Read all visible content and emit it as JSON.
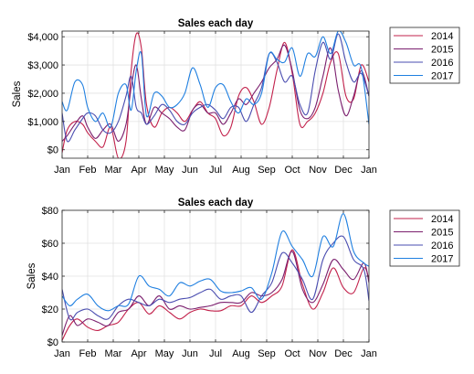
{
  "chart_data": [
    {
      "type": "line",
      "title": "Sales each day",
      "xlabel": "",
      "ylabel": "Sales",
      "categories": [
        "Jan",
        "Feb",
        "Mar",
        "Apr",
        "May",
        "Jun",
        "Jul",
        "Aug",
        "Sep",
        "Oct",
        "Nov",
        "Dec",
        "Jan"
      ],
      "ylim": [
        -300,
        4200
      ],
      "yticks": [
        0,
        1000,
        2000,
        3000,
        4000
      ],
      "ytick_labels": [
        "$0",
        "$1,000",
        "$2,000",
        "$3,000",
        "$4,000"
      ],
      "grid": true,
      "legend_position": "outside-top-right",
      "series": [
        {
          "name": "2014",
          "color": "#c2214b",
          "x": [
            0,
            0.2,
            0.5,
            0.8,
            1.0,
            1.3,
            1.6,
            1.9,
            2.2,
            2.5,
            2.7,
            2.9,
            3.1,
            3.3,
            3.6,
            3.9,
            4.2,
            4.5,
            4.8,
            5.1,
            5.4,
            5.7,
            6.0,
            6.3,
            6.6,
            6.9,
            7.2,
            7.5,
            7.8,
            8.1,
            8.4,
            8.7,
            9.0,
            9.3,
            9.6,
            9.9,
            10.2,
            10.5,
            10.8,
            11.1,
            11.4,
            11.7,
            12.0
          ],
          "values": [
            -100,
            700,
            1000,
            900,
            600,
            300,
            100,
            800,
            -300,
            300,
            2800,
            4100,
            3600,
            1600,
            800,
            1300,
            1500,
            1300,
            1000,
            1400,
            1700,
            1300,
            1100,
            500,
            800,
            1900,
            2200,
            1700,
            900,
            1500,
            2800,
            3800,
            2700,
            900,
            1000,
            1300,
            2000,
            3100,
            3400,
            1900,
            1800,
            3000,
            2400
          ]
        },
        {
          "name": "2015",
          "color": "#7b1f6e",
          "x": [
            0,
            0.2,
            0.5,
            0.8,
            1.0,
            1.3,
            1.6,
            1.9,
            2.2,
            2.5,
            2.7,
            2.9,
            3.1,
            3.3,
            3.6,
            3.9,
            4.2,
            4.5,
            4.8,
            5.1,
            5.4,
            5.7,
            6.0,
            6.3,
            6.6,
            6.9,
            7.2,
            7.5,
            7.8,
            8.1,
            8.4,
            8.7,
            9.0,
            9.3,
            9.6,
            9.9,
            10.2,
            10.5,
            10.8,
            11.1,
            11.4,
            11.7,
            12.0
          ],
          "values": [
            300,
            500,
            900,
            1200,
            800,
            400,
            700,
            900,
            300,
            900,
            2200,
            3000,
            1800,
            900,
            1500,
            1300,
            1100,
            800,
            700,
            1400,
            1600,
            1300,
            1300,
            900,
            1300,
            1800,
            1600,
            2000,
            2400,
            2900,
            3200,
            3700,
            2800,
            1400,
            1100,
            1500,
            2600,
            3600,
            2100,
            1200,
            1900,
            2800,
            1900
          ]
        },
        {
          "name": "2016",
          "color": "#4a4db0",
          "x": [
            0,
            0.2,
            0.5,
            0.8,
            1.0,
            1.3,
            1.6,
            1.9,
            2.2,
            2.5,
            2.7,
            2.9,
            3.1,
            3.3,
            3.6,
            3.9,
            4.2,
            4.5,
            4.8,
            5.1,
            5.4,
            5.7,
            6.0,
            6.3,
            6.6,
            6.9,
            7.2,
            7.5,
            7.8,
            8.1,
            8.4,
            8.7,
            9.0,
            9.3,
            9.6,
            9.9,
            10.2,
            10.5,
            10.8,
            11.1,
            11.4,
            11.7,
            12.0
          ],
          "values": [
            1300,
            300,
            700,
            1100,
            1300,
            1200,
            700,
            600,
            1000,
            1900,
            2600,
            1500,
            1300,
            900,
            1200,
            1600,
            1400,
            1000,
            900,
            1300,
            1500,
            1600,
            1400,
            1100,
            1500,
            1500,
            1000,
            1600,
            2200,
            3400,
            3100,
            2400,
            2600,
            1600,
            1300,
            2800,
            3800,
            3200,
            4100,
            3100,
            2400,
            2700,
            1900
          ]
        },
        {
          "name": "2017",
          "color": "#1f7fe0",
          "x": [
            0,
            0.2,
            0.5,
            0.8,
            1.0,
            1.3,
            1.6,
            1.9,
            2.2,
            2.5,
            2.7,
            2.9,
            3.1,
            3.3,
            3.6,
            3.9,
            4.2,
            4.5,
            4.8,
            5.1,
            5.4,
            5.7,
            6.0,
            6.3,
            6.6,
            6.9,
            7.2,
            7.5,
            7.8,
            8.1,
            8.4,
            8.7,
            9.0,
            9.3,
            9.6,
            9.9,
            10.2,
            10.5,
            10.8,
            11.1,
            11.4,
            11.7,
            12.0
          ],
          "values": [
            1700,
            1400,
            2400,
            2300,
            1500,
            1000,
            1300,
            800,
            2000,
            2300,
            1400,
            2800,
            3400,
            1200,
            2000,
            1900,
            1500,
            1600,
            2000,
            2900,
            2300,
            1500,
            2200,
            2300,
            1700,
            1300,
            1800,
            1600,
            2000,
            3400,
            3200,
            3100,
            3600,
            2600,
            3400,
            3300,
            4000,
            3400,
            4200,
            3800,
            3000,
            2900,
            900
          ]
        }
      ]
    },
    {
      "type": "line",
      "title": "Sales each day",
      "xlabel": "",
      "ylabel": "Sales",
      "categories": [
        "Jan",
        "Feb",
        "Mar",
        "Apr",
        "May",
        "Jun",
        "Jul",
        "Aug",
        "Sep",
        "Oct",
        "Nov",
        "Dec",
        "Jan"
      ],
      "ylim": [
        0,
        80
      ],
      "yticks": [
        0,
        20,
        40,
        60,
        80
      ],
      "ytick_labels": [
        "$0",
        "$20",
        "$40",
        "$60",
        "$80"
      ],
      "grid": true,
      "legend_position": "outside-top-right",
      "series": [
        {
          "name": "2014",
          "color": "#c2214b",
          "x": [
            0,
            0.3,
            0.6,
            1.0,
            1.4,
            1.8,
            2.2,
            2.6,
            3.0,
            3.4,
            3.8,
            4.2,
            4.6,
            5.0,
            5.4,
            5.8,
            6.2,
            6.6,
            7.0,
            7.4,
            7.8,
            8.2,
            8.6,
            9.0,
            9.4,
            9.8,
            10.2,
            10.6,
            11.0,
            11.4,
            11.8,
            12.0
          ],
          "values": [
            1,
            10,
            14,
            9,
            7,
            10,
            12,
            20,
            24,
            17,
            22,
            18,
            14,
            18,
            20,
            19,
            19,
            22,
            22,
            28,
            24,
            28,
            34,
            56,
            35,
            20,
            30,
            45,
            33,
            30,
            45,
            38
          ]
        },
        {
          "name": "2015",
          "color": "#7b1f6e",
          "x": [
            0,
            0.3,
            0.6,
            1.0,
            1.4,
            1.8,
            2.2,
            2.6,
            3.0,
            3.4,
            3.8,
            4.2,
            4.6,
            5.0,
            5.4,
            5.8,
            6.2,
            6.6,
            7.0,
            7.4,
            7.8,
            8.2,
            8.6,
            9.0,
            9.4,
            9.8,
            10.2,
            10.6,
            11.0,
            11.4,
            11.8,
            12.0
          ],
          "values": [
            4,
            16,
            10,
            14,
            12,
            10,
            18,
            20,
            28,
            22,
            28,
            20,
            22,
            20,
            21,
            22,
            24,
            24,
            24,
            30,
            28,
            30,
            38,
            55,
            32,
            24,
            35,
            50,
            44,
            38,
            48,
            36
          ]
        },
        {
          "name": "2016",
          "color": "#4a4db0",
          "x": [
            0,
            0.3,
            0.6,
            1.0,
            1.4,
            1.8,
            2.2,
            2.6,
            3.0,
            3.4,
            3.8,
            4.2,
            4.6,
            5.0,
            5.4,
            5.8,
            6.2,
            6.6,
            7.0,
            7.4,
            7.8,
            8.2,
            8.6,
            9.0,
            9.4,
            9.8,
            10.2,
            10.6,
            11.0,
            11.4,
            11.8,
            12.0
          ],
          "values": [
            32,
            14,
            18,
            20,
            16,
            14,
            22,
            26,
            24,
            22,
            26,
            24,
            26,
            27,
            30,
            32,
            26,
            28,
            28,
            18,
            28,
            36,
            54,
            48,
            38,
            26,
            50,
            60,
            64,
            50,
            44,
            25
          ]
        },
        {
          "name": "2017",
          "color": "#1f7fe0",
          "x": [
            0,
            0.3,
            0.6,
            1.0,
            1.4,
            1.8,
            2.2,
            2.6,
            3.0,
            3.4,
            3.8,
            4.2,
            4.6,
            5.0,
            5.4,
            5.8,
            6.2,
            6.6,
            7.0,
            7.4,
            7.8,
            8.2,
            8.6,
            9.0,
            9.4,
            9.8,
            10.2,
            10.6,
            11.0,
            11.4,
            11.8,
            12.0
          ],
          "values": [
            28,
            22,
            26,
            29,
            22,
            19,
            22,
            23,
            40,
            34,
            32,
            28,
            36,
            34,
            37,
            38,
            31,
            30,
            31,
            33,
            26,
            42,
            67,
            58,
            50,
            40,
            64,
            58,
            78,
            55,
            48,
            46
          ]
        }
      ]
    }
  ]
}
